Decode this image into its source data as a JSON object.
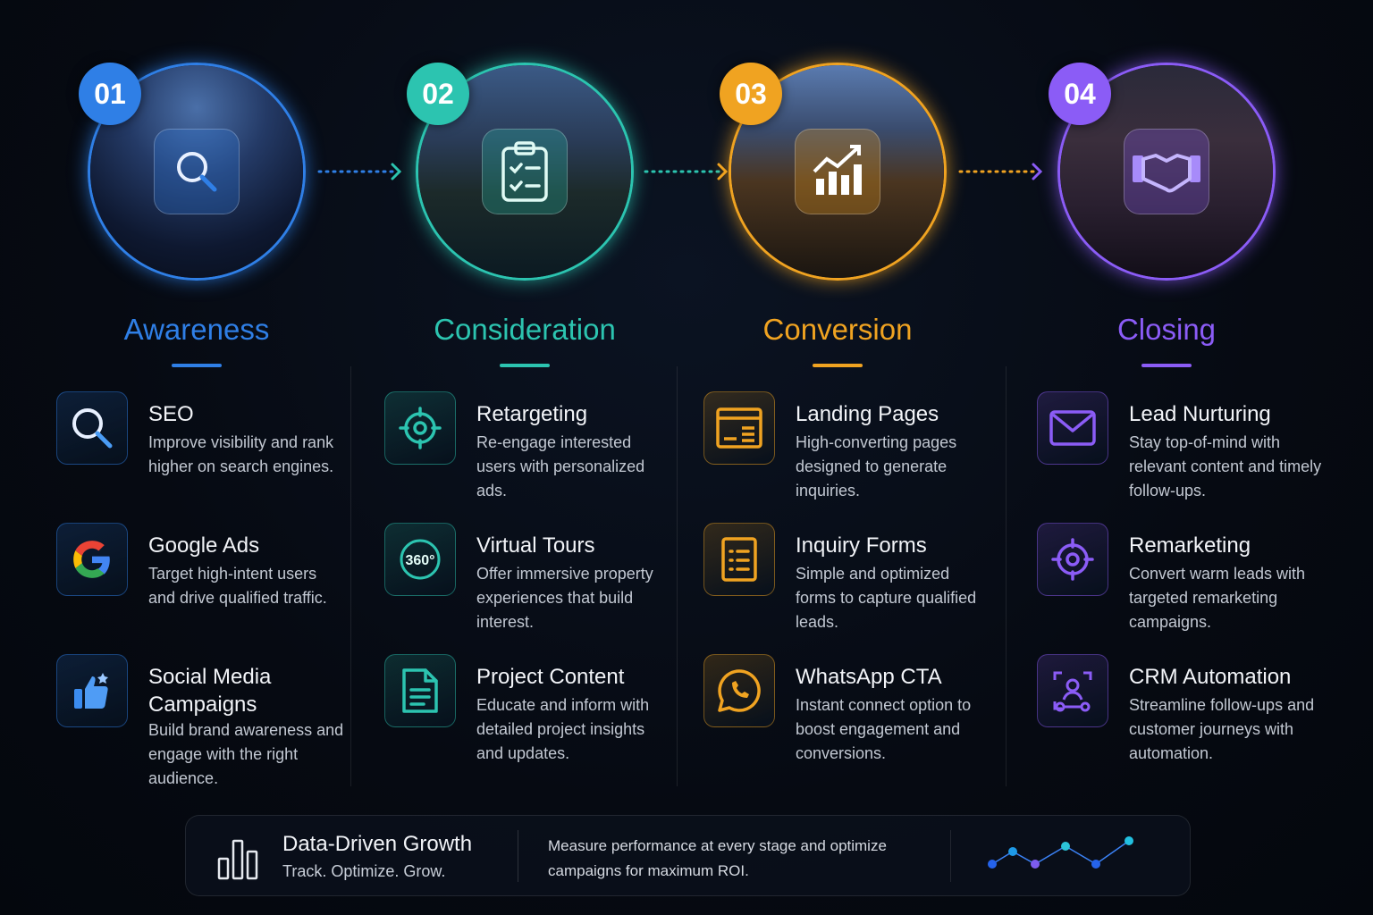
{
  "stages": [
    {
      "number": "01",
      "title": "Awareness",
      "color": "#2f7fe6",
      "center_icon": "search-icon",
      "photo": "city-skyline-night",
      "items": [
        {
          "title": "SEO",
          "desc": "Improve visibility and rank higher on search engines.",
          "icon": "search-icon"
        },
        {
          "title": "Google Ads",
          "desc": "Target high-intent users and drive qualified traffic.",
          "icon": "google-icon"
        },
        {
          "title": "Social Media Campaigns",
          "desc": "Build brand awareness and engage with the right audience.",
          "icon": "thumbs-up-icon"
        }
      ]
    },
    {
      "number": "02",
      "title": "Consideration",
      "color": "#2cc4b0",
      "center_icon": "clipboard-check-icon",
      "photo": "modern-villa-night",
      "items": [
        {
          "title": "Retargeting",
          "desc": "Re-engage interested users with personalized ads.",
          "icon": "target-icon"
        },
        {
          "title": "Virtual Tours",
          "desc": "Offer immersive property experiences that build interest.",
          "icon": "360-icon"
        },
        {
          "title": "Project Content",
          "desc": "Educate and inform with detailed project insights and updates.",
          "icon": "document-icon"
        }
      ]
    },
    {
      "number": "03",
      "title": "Conversion",
      "color": "#f0a321",
      "center_icon": "growth-chart-icon",
      "photo": "luxury-house-night",
      "items": [
        {
          "title": "Landing Pages",
          "desc": "High-converting pages designed to generate inquiries.",
          "icon": "landing-page-icon"
        },
        {
          "title": "Inquiry Forms",
          "desc": "Simple and optimized forms to capture qualified leads.",
          "icon": "form-icon"
        },
        {
          "title": "WhatsApp CTA",
          "desc": "Instant connect option to boost engagement and conversions.",
          "icon": "whatsapp-icon"
        }
      ]
    },
    {
      "number": "04",
      "title": "Closing",
      "color": "#8b5cf6",
      "center_icon": "handshake-icon",
      "photo": "luxury-interior",
      "items": [
        {
          "title": "Lead Nurturing",
          "desc": "Stay top-of-mind with relevant content and timely follow-ups.",
          "icon": "mail-icon"
        },
        {
          "title": "Remarketing",
          "desc": "Convert warm leads with targeted remarketing campaigns.",
          "icon": "target-icon"
        },
        {
          "title": "CRM Automation",
          "desc": "Streamline follow-ups and customer journeys with automation.",
          "icon": "crm-icon"
        }
      ]
    }
  ],
  "footer": {
    "title": "Data-Driven Growth",
    "tagline": "Track. Optimize. Grow.",
    "desc": "Measure performance at every stage and optimize campaigns for maximum ROI.",
    "icon": "bar-chart-icon"
  }
}
